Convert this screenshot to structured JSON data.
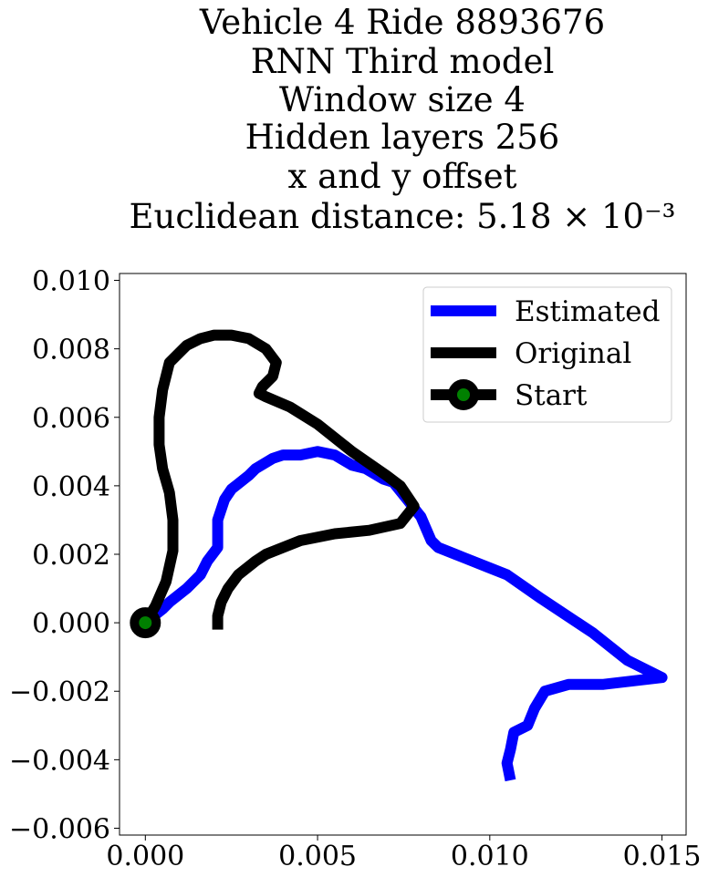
{
  "chart_data": {
    "type": "line",
    "title_lines": [
      "Vehicle 4 Ride 8893676",
      "RNN Third model",
      "Window size 4",
      "Hidden layers 256",
      "x and y offset",
      "Euclidean distance: 5.18 × 10⁻³"
    ],
    "xlabel": "",
    "ylabel": "",
    "xlim": [
      -0.00075,
      0.0157
    ],
    "ylim": [
      -0.0062,
      0.0102
    ],
    "x_ticks": [
      "0.000",
      "0.005",
      "0.010",
      "0.015"
    ],
    "x_tick_values": [
      0,
      0.005,
      0.01,
      0.015
    ],
    "y_ticks": [
      "0.010",
      "0.008",
      "0.006",
      "0.004",
      "0.002",
      "0.000",
      "−0.002",
      "−0.004",
      "−0.006"
    ],
    "y_tick_values": [
      0.01,
      0.008,
      0.006,
      0.004,
      0.002,
      0.0,
      -0.002,
      -0.004,
      -0.006
    ],
    "grid": false,
    "legend_position": "top-right",
    "series": [
      {
        "name": "Estimated",
        "color": "#0000ff",
        "x": [
          0.0,
          0.0005,
          0.0007,
          0.0012,
          0.0016,
          0.0018,
          0.0021,
          0.0021,
          0.0023,
          0.0025,
          0.003,
          0.0032,
          0.0037,
          0.004,
          0.0045,
          0.005,
          0.0055,
          0.006,
          0.0064,
          0.0069,
          0.0072,
          0.0076,
          0.008,
          0.0083,
          0.0085,
          0.009,
          0.01,
          0.0105,
          0.0115,
          0.013,
          0.014,
          0.015,
          0.0133,
          0.0123,
          0.0116,
          0.0113,
          0.0111,
          0.0107,
          0.0106,
          0.0105,
          0.0106
        ],
        "y": [
          0.0,
          0.0004,
          0.0006,
          0.001,
          0.0014,
          0.0018,
          0.0022,
          0.003,
          0.0036,
          0.0039,
          0.0043,
          0.0045,
          0.0048,
          0.0049,
          0.0049,
          0.005,
          0.0049,
          0.0046,
          0.0045,
          0.0042,
          0.0041,
          0.0036,
          0.0031,
          0.0024,
          0.0022,
          0.002,
          0.0016,
          0.0014,
          0.0007,
          -0.0003,
          -0.0011,
          -0.0016,
          -0.0018,
          -0.0018,
          -0.002,
          -0.0025,
          -0.003,
          -0.0032,
          -0.0037,
          -0.0041,
          -0.0046
        ]
      },
      {
        "name": "Original",
        "color": "#000000",
        "x": [
          0.0,
          0.0003,
          0.0006,
          0.0008,
          0.0008,
          0.0007,
          0.0005,
          0.0004,
          0.0004,
          0.0005,
          0.0007,
          0.0012,
          0.0016,
          0.002,
          0.0025,
          0.003,
          0.0035,
          0.0038,
          0.0037,
          0.0034,
          0.0033,
          0.0035,
          0.0042,
          0.005,
          0.006,
          0.007,
          0.0074,
          0.0078,
          0.0074,
          0.0065,
          0.0055,
          0.0045,
          0.0035,
          0.0032,
          0.0027,
          0.0024,
          0.0022,
          0.0021,
          0.0021
        ],
        "y": [
          0.0,
          0.0005,
          0.0012,
          0.0021,
          0.003,
          0.0038,
          0.0045,
          0.0052,
          0.006,
          0.0068,
          0.0076,
          0.0081,
          0.0083,
          0.0084,
          0.0084,
          0.0083,
          0.008,
          0.0076,
          0.0072,
          0.0069,
          0.0067,
          0.0066,
          0.0063,
          0.0058,
          0.005,
          0.0043,
          0.004,
          0.0034,
          0.0029,
          0.0027,
          0.0026,
          0.0024,
          0.002,
          0.0018,
          0.0014,
          0.001,
          0.0006,
          0.0002,
          -0.0002
        ]
      },
      {
        "name": "Start",
        "color": "#000000",
        "marker_face": "#008000",
        "x": [
          0.0
        ],
        "y": [
          0.0
        ]
      }
    ]
  }
}
